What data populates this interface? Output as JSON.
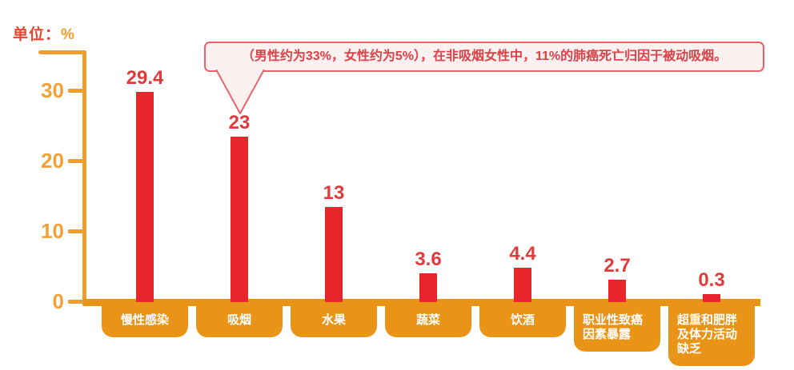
{
  "unit": {
    "prefix": "单位：",
    "percent": "%"
  },
  "y_axis": {
    "tick_labels": [
      "30",
      "20",
      "10",
      "0"
    ]
  },
  "callout": {
    "text": "（男性约为33%，女性约为5%），在非吸烟女性中，11%的肺癌死亡归因于被动吸烟。",
    "points_to": "吸烟"
  },
  "colors": {
    "bar": "#e8252b",
    "value_label": "#e23a3a",
    "axis": "#f09c2e",
    "tick_label": "#f0a238",
    "tab_bg": "#ea9417",
    "tab_text": "#ffffff",
    "callout_border": "#e8636b",
    "callout_bg": "#fcf1f1",
    "callout_text": "#dd4046",
    "unit_prefix": "#e4472e",
    "unit_percent": "#f09d28"
  },
  "chart_data": {
    "type": "bar",
    "title": "",
    "xlabel": "",
    "ylabel": "单位：%",
    "ylim": [
      0,
      30
    ],
    "yticks": [
      0,
      10,
      20,
      30
    ],
    "grid": false,
    "legend": false,
    "categories": [
      "慢性感染",
      "吸烟",
      "水果",
      "蔬菜",
      "饮酒",
      "职业性致癌因素暴露",
      "超重和肥胖及体力活动缺乏"
    ],
    "categories_display": [
      [
        "慢性感染"
      ],
      [
        "吸烟"
      ],
      [
        "水果"
      ],
      [
        "蔬菜"
      ],
      [
        "饮酒"
      ],
      [
        "职业性致癌",
        "因素暴露"
      ],
      [
        "超重和肥胖",
        "及体力活动",
        "缺乏"
      ]
    ],
    "values": [
      29.4,
      23,
      13,
      3.6,
      4.4,
      2.7,
      0.3
    ],
    "value_labels": [
      "29.4",
      "23",
      "13",
      "3.6",
      "4.4",
      "2.7",
      "0.3"
    ],
    "annotation": "（男性约为33%，女性约为5%），在非吸烟女性中，11%的肺癌死亡归因于被动吸烟。",
    "annotation_target_category": "吸烟"
  }
}
